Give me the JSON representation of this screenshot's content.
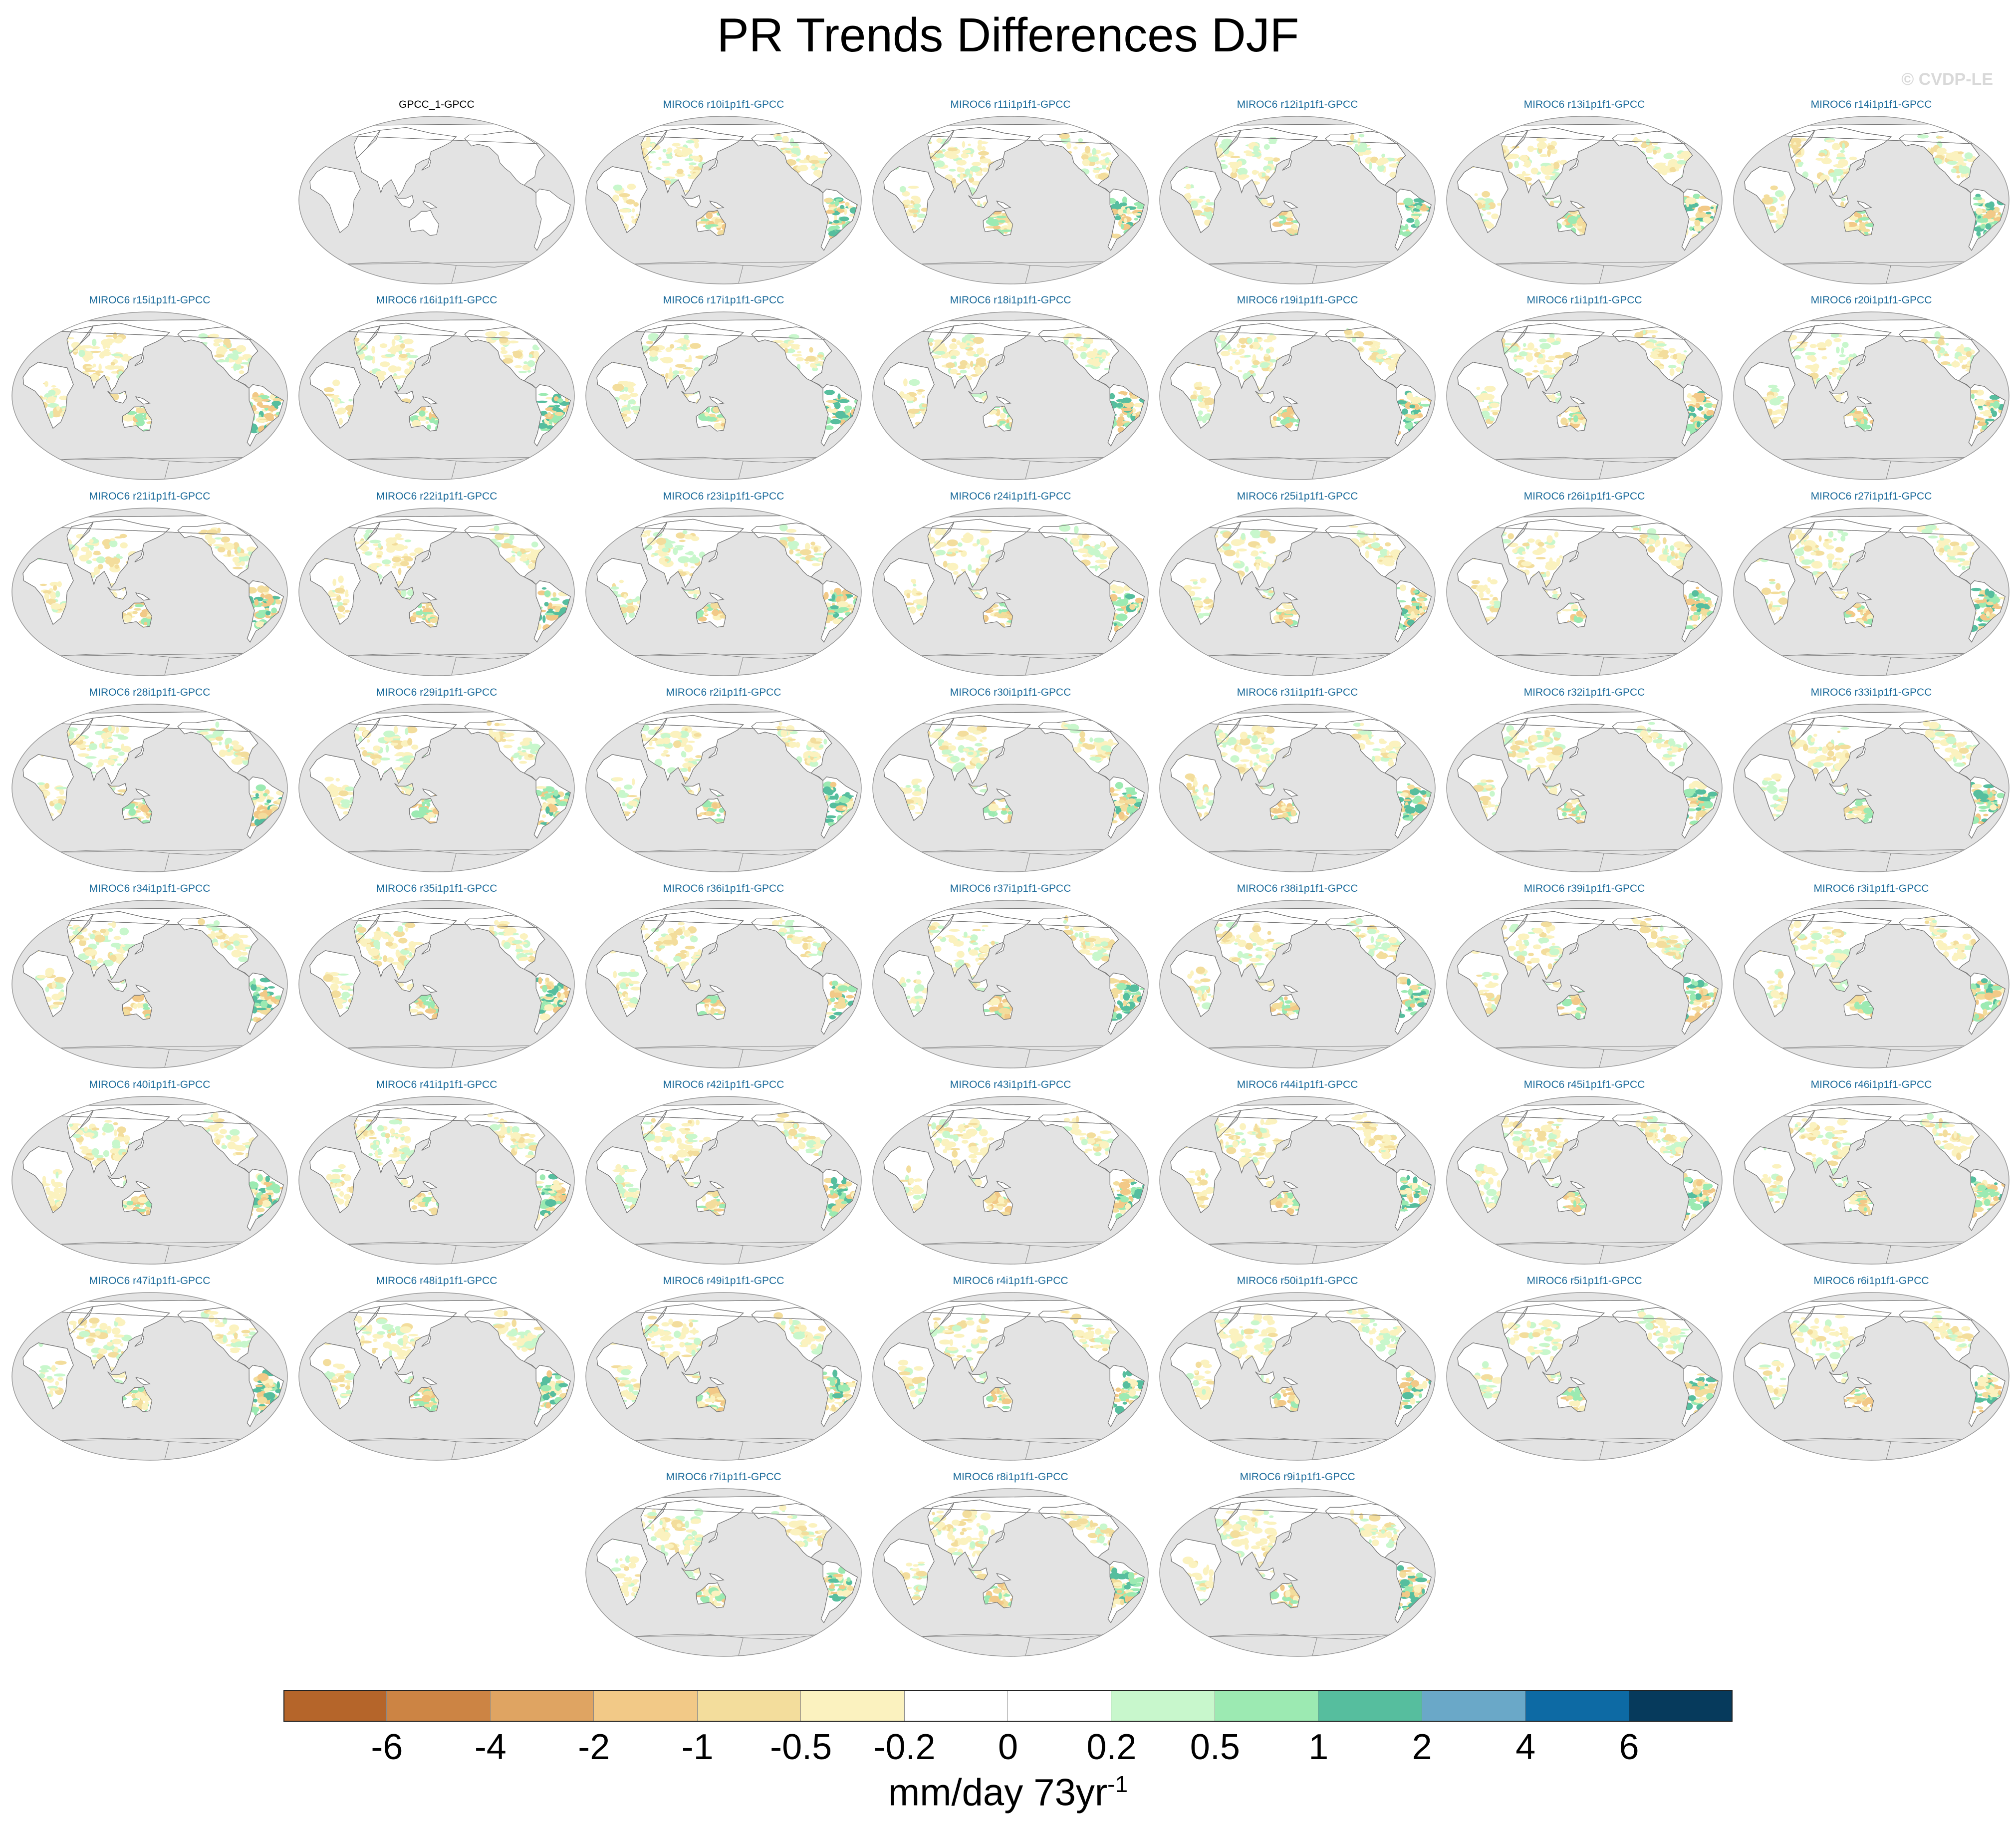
{
  "title": "PR Trends Differences DJF",
  "watermark": "© CVDP-LE",
  "chart_data": {
    "type": "heatmap",
    "title": "PR Trends Differences DJF",
    "projection": "Robinson, Pacific-centered",
    "panels": [
      "GPCC_1-GPCC",
      "MIROC6 r10i1p1f1-GPCC",
      "MIROC6 r11i1p1f1-GPCC",
      "MIROC6 r12i1p1f1-GPCC",
      "MIROC6 r13i1p1f1-GPCC",
      "MIROC6 r14i1p1f1-GPCC",
      "MIROC6 r15i1p1f1-GPCC",
      "MIROC6 r16i1p1f1-GPCC",
      "MIROC6 r17i1p1f1-GPCC",
      "MIROC6 r18i1p1f1-GPCC",
      "MIROC6 r19i1p1f1-GPCC",
      "MIROC6 r1i1p1f1-GPCC",
      "MIROC6 r20i1p1f1-GPCC",
      "MIROC6 r21i1p1f1-GPCC",
      "MIROC6 r22i1p1f1-GPCC",
      "MIROC6 r23i1p1f1-GPCC",
      "MIROC6 r24i1p1f1-GPCC",
      "MIROC6 r25i1p1f1-GPCC",
      "MIROC6 r26i1p1f1-GPCC",
      "MIROC6 r27i1p1f1-GPCC",
      "MIROC6 r28i1p1f1-GPCC",
      "MIROC6 r29i1p1f1-GPCC",
      "MIROC6 r2i1p1f1-GPCC",
      "MIROC6 r30i1p1f1-GPCC",
      "MIROC6 r31i1p1f1-GPCC",
      "MIROC6 r32i1p1f1-GPCC",
      "MIROC6 r33i1p1f1-GPCC",
      "MIROC6 r34i1p1f1-GPCC",
      "MIROC6 r35i1p1f1-GPCC",
      "MIROC6 r36i1p1f1-GPCC",
      "MIROC6 r37i1p1f1-GPCC",
      "MIROC6 r38i1p1f1-GPCC",
      "MIROC6 r39i1p1f1-GPCC",
      "MIROC6 r3i1p1f1-GPCC",
      "MIROC6 r40i1p1f1-GPCC",
      "MIROC6 r41i1p1f1-GPCC",
      "MIROC6 r42i1p1f1-GPCC",
      "MIROC6 r43i1p1f1-GPCC",
      "MIROC6 r44i1p1f1-GPCC",
      "MIROC6 r45i1p1f1-GPCC",
      "MIROC6 r46i1p1f1-GPCC",
      "MIROC6 r47i1p1f1-GPCC",
      "MIROC6 r48i1p1f1-GPCC",
      "MIROC6 r49i1p1f1-GPCC",
      "MIROC6 r4i1p1f1-GPCC",
      "MIROC6 r50i1p1f1-GPCC",
      "MIROC6 r5i1p1f1-GPCC",
      "MIROC6 r6i1p1f1-GPCC",
      "MIROC6 r7i1p1f1-GPCC",
      "MIROC6 r8i1p1f1-GPCC",
      "MIROC6 r9i1p1f1-GPCC"
    ],
    "colorbar": {
      "labels": [
        "-6",
        "-4",
        "-2",
        "-1",
        "-0.5",
        "-0.2",
        "0",
        "0.2",
        "0.5",
        "1",
        "2",
        "4",
        "6"
      ],
      "colors": [
        "#b5652a",
        "#cc8444",
        "#dfa462",
        "#f2c987",
        "#f3dd9c",
        "#fbf2bf",
        "#ffffff",
        "#ffffff",
        "#c8f7cc",
        "#9ceab2",
        "#56be9e",
        "#6aa8c8",
        "#0d6aa4",
        "#063a5c"
      ],
      "units": "mm/day 73yr",
      "units_superscript": "-1"
    },
    "ocean_color": "#e3e3e3",
    "land_colors_observation": "#ffffff"
  }
}
